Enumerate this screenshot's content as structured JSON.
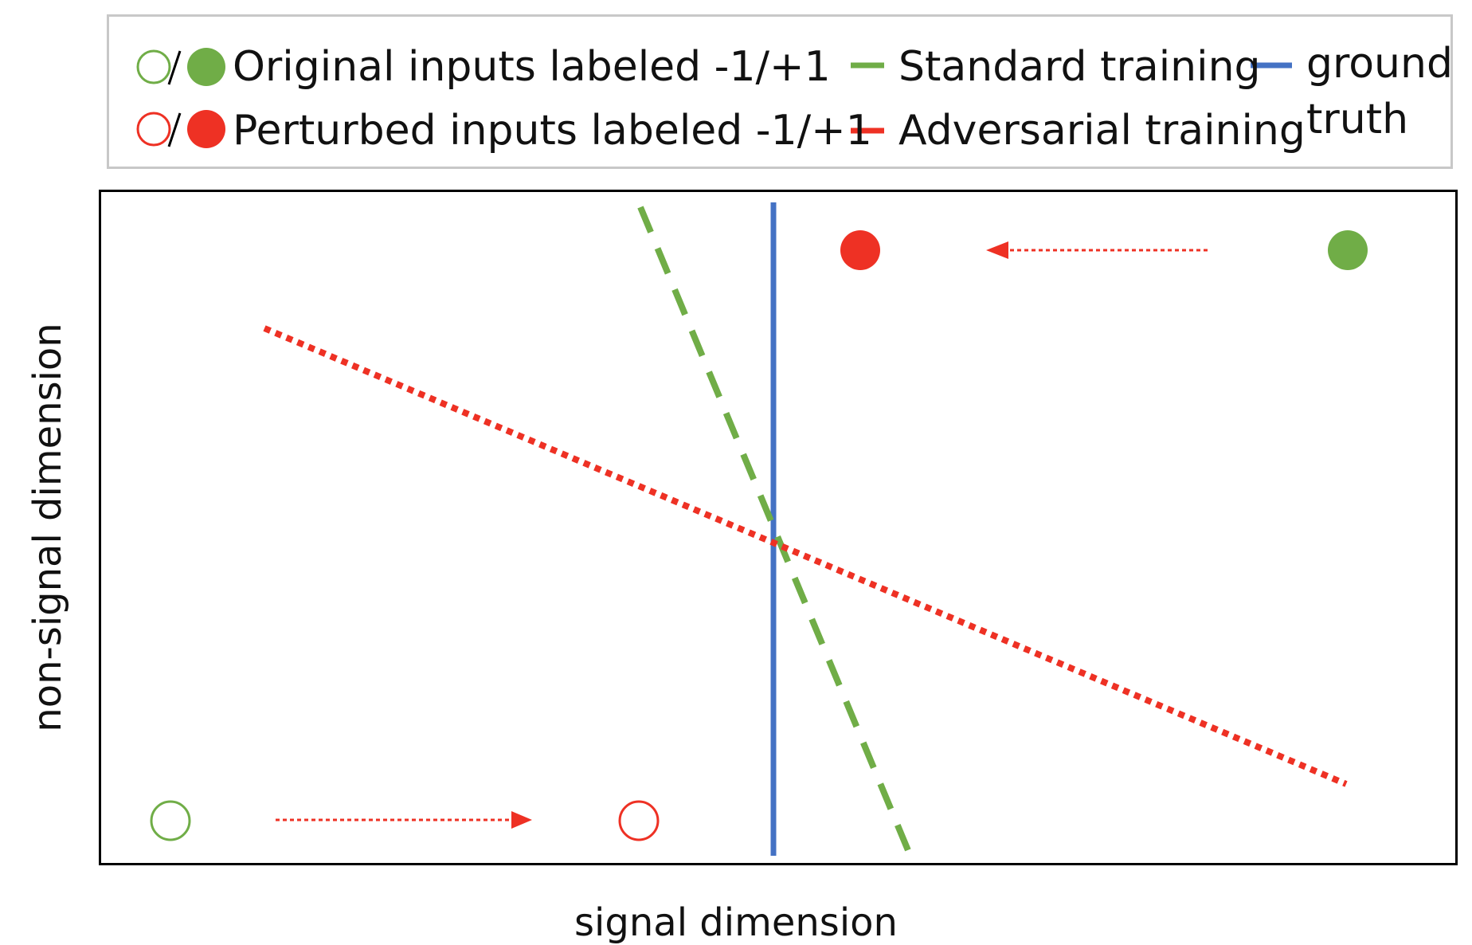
{
  "legend": {
    "original_inputs": "Original inputs labeled -1/+1",
    "perturbed_inputs": "Perturbed inputs labeled -1/+1",
    "standard_training": "Standard training",
    "adversarial_training": "Adversarial training",
    "ground_truth_line1": "ground",
    "ground_truth_line2": "truth"
  },
  "axes": {
    "xlabel": "signal dimension",
    "ylabel": "non-signal dimension"
  },
  "colors": {
    "original": "#70AD47",
    "perturbed": "#EE3124",
    "ground_truth": "#4472C4",
    "frame": "#000000",
    "legend_border": "#C8C8C8"
  }
}
